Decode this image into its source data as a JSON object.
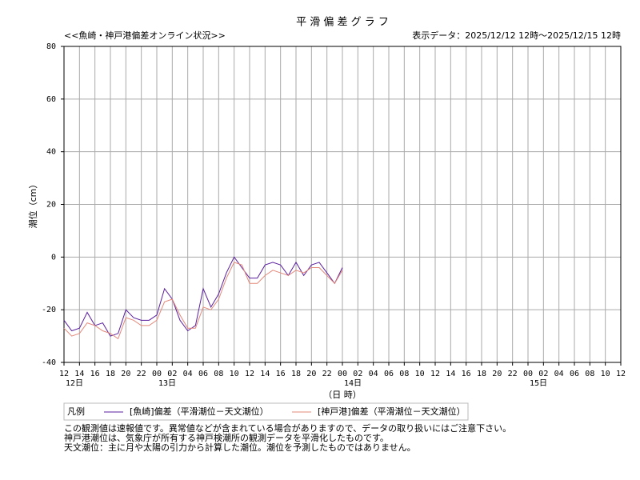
{
  "chart_data": {
    "type": "line",
    "title": "平 滑 偏 差 グ ラ フ",
    "subtitle": "<<魚崎・神戸港偏差オンライン状況>>",
    "range_label": "表示データ：2025/12/12 12時～2025/12/15 12時",
    "y_label": "潮位（cm）",
    "x_label": "（日 時）",
    "legend_title": "凡例",
    "notes": [
      "この観測値は速報値です。異常値などが含まれている場合がありますので、データの取り扱いにはご注意下さい。",
      "神戸港潮位は、気象庁が所有する神戸検潮所の観測データを平滑化したものです。",
      "天文潮位：主に月や太陽の引力から計算した潮位。潮位を予測したものではありません。"
    ],
    "x": [
      0,
      1,
      2,
      3,
      4,
      5,
      6,
      7,
      8,
      9,
      10,
      11,
      12,
      13,
      14,
      15,
      16,
      17,
      18,
      19,
      20,
      21,
      22,
      23,
      24,
      25,
      26,
      27,
      28,
      29,
      30,
      31,
      32,
      33,
      34,
      35,
      36
    ],
    "series": [
      {
        "name": "[魚崎]偏差（平滑潮位－天文潮位）",
        "color": "#5a1f9e",
        "values": [
          -24,
          -28,
          -27,
          -21,
          -26,
          -25,
          -30,
          -29,
          -20,
          -23,
          -24,
          -24,
          -22,
          -12,
          -16,
          -24,
          -28,
          -26,
          -12,
          -19,
          -14,
          -6,
          0,
          -4,
          -8,
          -8,
          -3,
          -2,
          -3,
          -7,
          -2,
          -7,
          -3,
          -2,
          -6,
          -10,
          -4
        ]
      },
      {
        "name": "[神戸港]偏差（平滑潮位－天文潮位）",
        "color": "#e3897a",
        "values": [
          -27,
          -30,
          -29,
          -25,
          -26,
          -28,
          -29,
          -31,
          -23,
          -24,
          -26,
          -26,
          -24,
          -17,
          -16,
          -22,
          -27,
          -27,
          -19,
          -20,
          -16,
          -8,
          -2,
          -3,
          -10,
          -10,
          -7,
          -5,
          -6,
          -7,
          -5,
          -6,
          -4,
          -4,
          -7,
          -10,
          -5
        ]
      }
    ],
    "xlim": [
      0,
      72
    ],
    "xticks": [
      {
        "value": 0,
        "label": "12"
      },
      {
        "value": 2,
        "label": "14"
      },
      {
        "value": 4,
        "label": "16"
      },
      {
        "value": 6,
        "label": "18"
      },
      {
        "value": 8,
        "label": "20"
      },
      {
        "value": 10,
        "label": "22"
      },
      {
        "value": 12,
        "label": "00"
      },
      {
        "value": 14,
        "label": "02"
      },
      {
        "value": 16,
        "label": "04"
      },
      {
        "value": 18,
        "label": "06"
      },
      {
        "value": 20,
        "label": "08"
      },
      {
        "value": 22,
        "label": "10"
      },
      {
        "value": 24,
        "label": "12"
      },
      {
        "value": 26,
        "label": "14"
      },
      {
        "value": 28,
        "label": "16"
      },
      {
        "value": 30,
        "label": "18"
      },
      {
        "value": 32,
        "label": "20"
      },
      {
        "value": 34,
        "label": "22"
      },
      {
        "value": 36,
        "label": "00"
      },
      {
        "value": 38,
        "label": "02"
      },
      {
        "value": 40,
        "label": "04"
      },
      {
        "value": 42,
        "label": "06"
      },
      {
        "value": 44,
        "label": "08"
      },
      {
        "value": 46,
        "label": "10"
      },
      {
        "value": 48,
        "label": "12"
      },
      {
        "value": 50,
        "label": "14"
      },
      {
        "value": 52,
        "label": "16"
      },
      {
        "value": 54,
        "label": "18"
      },
      {
        "value": 56,
        "label": "20"
      },
      {
        "value": 58,
        "label": "22"
      },
      {
        "value": 60,
        "label": "00"
      },
      {
        "value": 62,
        "label": "02"
      },
      {
        "value": 64,
        "label": "04"
      },
      {
        "value": 66,
        "label": "06"
      },
      {
        "value": 68,
        "label": "08"
      },
      {
        "value": 70,
        "label": "10"
      },
      {
        "value": 72,
        "label": "12"
      }
    ],
    "xday_labels": [
      {
        "value": 0,
        "label": "12日"
      },
      {
        "value": 12,
        "label": "13日"
      },
      {
        "value": 36,
        "label": "14日"
      },
      {
        "value": 60,
        "label": "15日"
      }
    ],
    "ylim": [
      -40,
      80
    ],
    "yticks": [
      -40,
      -20,
      0,
      20,
      40,
      60,
      80
    ],
    "grid": true
  }
}
